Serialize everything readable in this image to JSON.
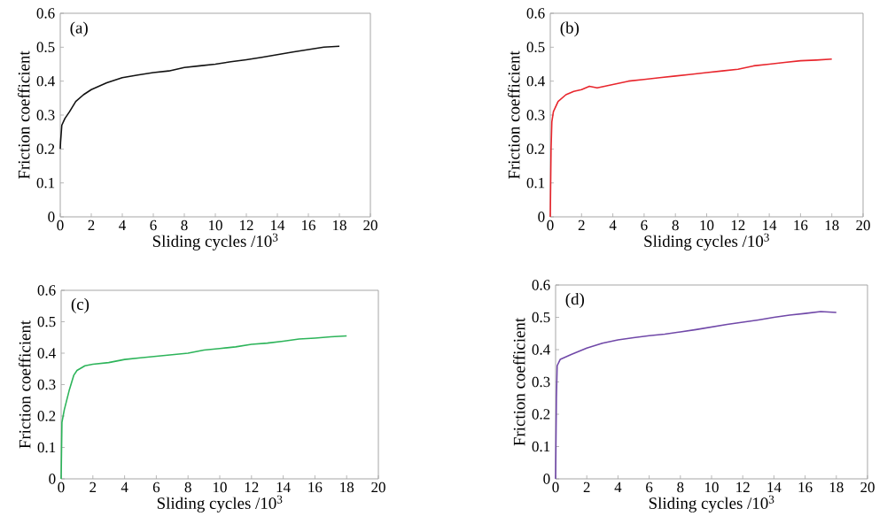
{
  "chart_data": [
    {
      "type": "line",
      "title": "(a)",
      "xlabel": "Sliding cycles /10$^{3}$",
      "ylabel": "Friction coefficient",
      "color": "#111111",
      "x": [
        0,
        0.02,
        0.1,
        0.3,
        0.6,
        1,
        1.5,
        2,
        3,
        4,
        5,
        6,
        7,
        8,
        9,
        10,
        11,
        12,
        13,
        14,
        15,
        16,
        17,
        18
      ],
      "values": [
        0.2,
        0.22,
        0.27,
        0.29,
        0.31,
        0.34,
        0.36,
        0.375,
        0.395,
        0.41,
        0.418,
        0.425,
        0.43,
        0.44,
        0.445,
        0.45,
        0.457,
        0.463,
        0.47,
        0.478,
        0.486,
        0.493,
        0.5,
        0.503
      ],
      "xlim": [
        0,
        20
      ],
      "ylim": [
        0,
        0.6
      ],
      "xticks": [
        0,
        2,
        4,
        6,
        8,
        10,
        12,
        14,
        16,
        18,
        20
      ],
      "yticks": [
        0,
        0.1,
        0.2,
        0.3,
        0.4,
        0.5,
        0.6
      ]
    },
    {
      "type": "line",
      "title": "(b)",
      "xlabel": "Sliding cycles /10$^{3}$",
      "ylabel": "Friction coefficient",
      "color": "#e8262d",
      "x": [
        0,
        0.05,
        0.1,
        0.2,
        0.5,
        1,
        1.5,
        2,
        2.5,
        3,
        4,
        5,
        6,
        7,
        8,
        9,
        10,
        11,
        12,
        13,
        14,
        15,
        16,
        17,
        18
      ],
      "values": [
        0,
        0.2,
        0.28,
        0.31,
        0.34,
        0.36,
        0.37,
        0.375,
        0.385,
        0.38,
        0.39,
        0.4,
        0.405,
        0.41,
        0.415,
        0.42,
        0.425,
        0.43,
        0.435,
        0.445,
        0.45,
        0.455,
        0.46,
        0.462,
        0.465
      ],
      "xlim": [
        0,
        20
      ],
      "ylim": [
        0,
        0.6
      ],
      "xticks": [
        0,
        2,
        4,
        6,
        8,
        10,
        12,
        14,
        16,
        18,
        20
      ],
      "yticks": [
        0,
        0.1,
        0.2,
        0.3,
        0.4,
        0.5,
        0.6
      ]
    },
    {
      "type": "line",
      "title": "(c)",
      "xlabel": "Sliding cycles /10$^{3}$",
      "ylabel": "Friction coefficient",
      "color": "#2db45a",
      "x": [
        0,
        0.05,
        0.2,
        0.5,
        0.8,
        1,
        1.5,
        2,
        3,
        4,
        5,
        6,
        7,
        8,
        9,
        10,
        11,
        12,
        13,
        14,
        15,
        16,
        17,
        18
      ],
      "values": [
        0,
        0.18,
        0.22,
        0.28,
        0.33,
        0.345,
        0.36,
        0.365,
        0.37,
        0.38,
        0.385,
        0.39,
        0.395,
        0.4,
        0.41,
        0.415,
        0.42,
        0.428,
        0.432,
        0.438,
        0.445,
        0.448,
        0.452,
        0.455
      ],
      "xlim": [
        0,
        20
      ],
      "ylim": [
        0,
        0.6
      ],
      "xticks": [
        0,
        2,
        4,
        6,
        8,
        10,
        12,
        14,
        16,
        18,
        20
      ],
      "yticks": [
        0,
        0.1,
        0.2,
        0.3,
        0.4,
        0.5,
        0.6
      ]
    },
    {
      "type": "line",
      "title": "(d)",
      "xlabel": "Sliding cycles /10$^{3}$",
      "ylabel": "Friction coefficient",
      "color": "#7048a8",
      "x": [
        0,
        0.05,
        0.1,
        0.3,
        1,
        2,
        3,
        4,
        5,
        6,
        7,
        8,
        9,
        10,
        11,
        12,
        13,
        14,
        15,
        16,
        17,
        18
      ],
      "values": [
        0,
        0.25,
        0.35,
        0.37,
        0.385,
        0.405,
        0.42,
        0.43,
        0.437,
        0.443,
        0.448,
        0.455,
        0.462,
        0.47,
        0.478,
        0.485,
        0.492,
        0.5,
        0.507,
        0.512,
        0.518,
        0.515
      ],
      "xlim": [
        0,
        20
      ],
      "ylim": [
        0,
        0.6
      ],
      "xticks": [
        0,
        2,
        4,
        6,
        8,
        10,
        12,
        14,
        16,
        18,
        20
      ],
      "yticks": [
        0,
        0.1,
        0.2,
        0.3,
        0.4,
        0.5,
        0.6
      ]
    }
  ]
}
